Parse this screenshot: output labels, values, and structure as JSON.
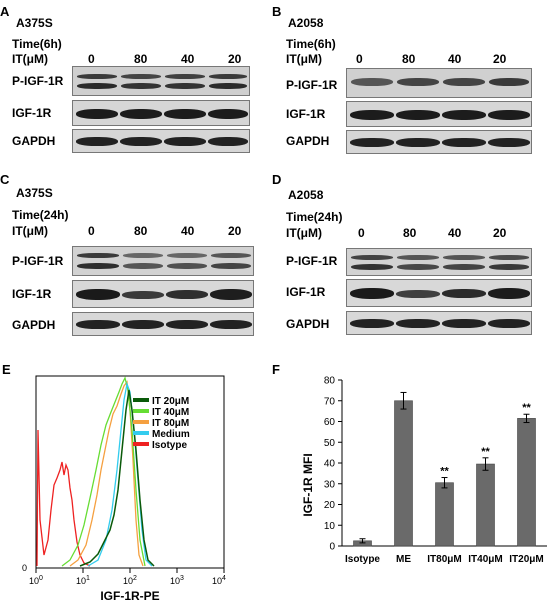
{
  "blots": [
    {
      "letter": "A",
      "cell": "A375S",
      "time_label": "Time(6h)",
      "it_label": "IT(μM)",
      "concentrations": [
        "0",
        "80",
        "40",
        "20"
      ],
      "rows": [
        "P-IGF-1R",
        "IGF-1R",
        "GAPDH"
      ]
    },
    {
      "letter": "B",
      "cell": "A2058",
      "time_label": "Time(6h)",
      "it_label": "IT(μM)",
      "concentrations": [
        "0",
        "80",
        "40",
        "20"
      ],
      "rows": [
        "P-IGF-1R",
        "IGF-1R",
        "GAPDH"
      ]
    },
    {
      "letter": "C",
      "cell": "A375S",
      "time_label": "Time(24h)",
      "it_label": "IT(μM)",
      "concentrations": [
        "0",
        "80",
        "40",
        "20"
      ],
      "rows": [
        "P-IGF-1R",
        "IGF-1R",
        "GAPDH"
      ]
    },
    {
      "letter": "D",
      "cell": "A2058",
      "time_label": "Time(24h)",
      "it_label": "IT(μM)",
      "concentrations": [
        "0",
        "80",
        "40",
        "20"
      ],
      "rows": [
        "P-IGF-1R",
        "IGF-1R",
        "GAPDH"
      ]
    }
  ],
  "panel_e": {
    "letter": "E",
    "xlabel": "IGF-1R-PE",
    "y_zero": "0",
    "x_ticks": [
      "10",
      "10",
      "10",
      "10",
      "10"
    ],
    "x_tick_exps": [
      "0",
      "1",
      "2",
      "3",
      "4"
    ],
    "legend": [
      {
        "name": "IT 20μM",
        "color": "#0a5a0a"
      },
      {
        "name": "IT 40μM",
        "color": "#66dd33"
      },
      {
        "name": "IT 80μM",
        "color": "#f5a040"
      },
      {
        "name": "Medium",
        "color": "#33ccee"
      },
      {
        "name": "Isotype",
        "color": "#ee2222"
      }
    ]
  },
  "chart_data": {
    "type": "bar",
    "title": "",
    "letter": "F",
    "xlabel": "",
    "ylabel": "IGF-1R MFI",
    "ylim": [
      0,
      80
    ],
    "yticks": [
      "0",
      "10",
      "20",
      "30",
      "40",
      "50",
      "60",
      "70",
      "80"
    ],
    "categories": [
      "Isotype",
      "ME",
      "IT80μM",
      "IT40μM",
      "IT20μM"
    ],
    "values": [
      2.5,
      70,
      30.5,
      39.5,
      61.5
    ],
    "errors": [
      1,
      4,
      2.5,
      3,
      2
    ],
    "annotations": [
      "",
      "",
      "**",
      "**",
      "**"
    ],
    "bar_color": "#6a6a6a"
  }
}
